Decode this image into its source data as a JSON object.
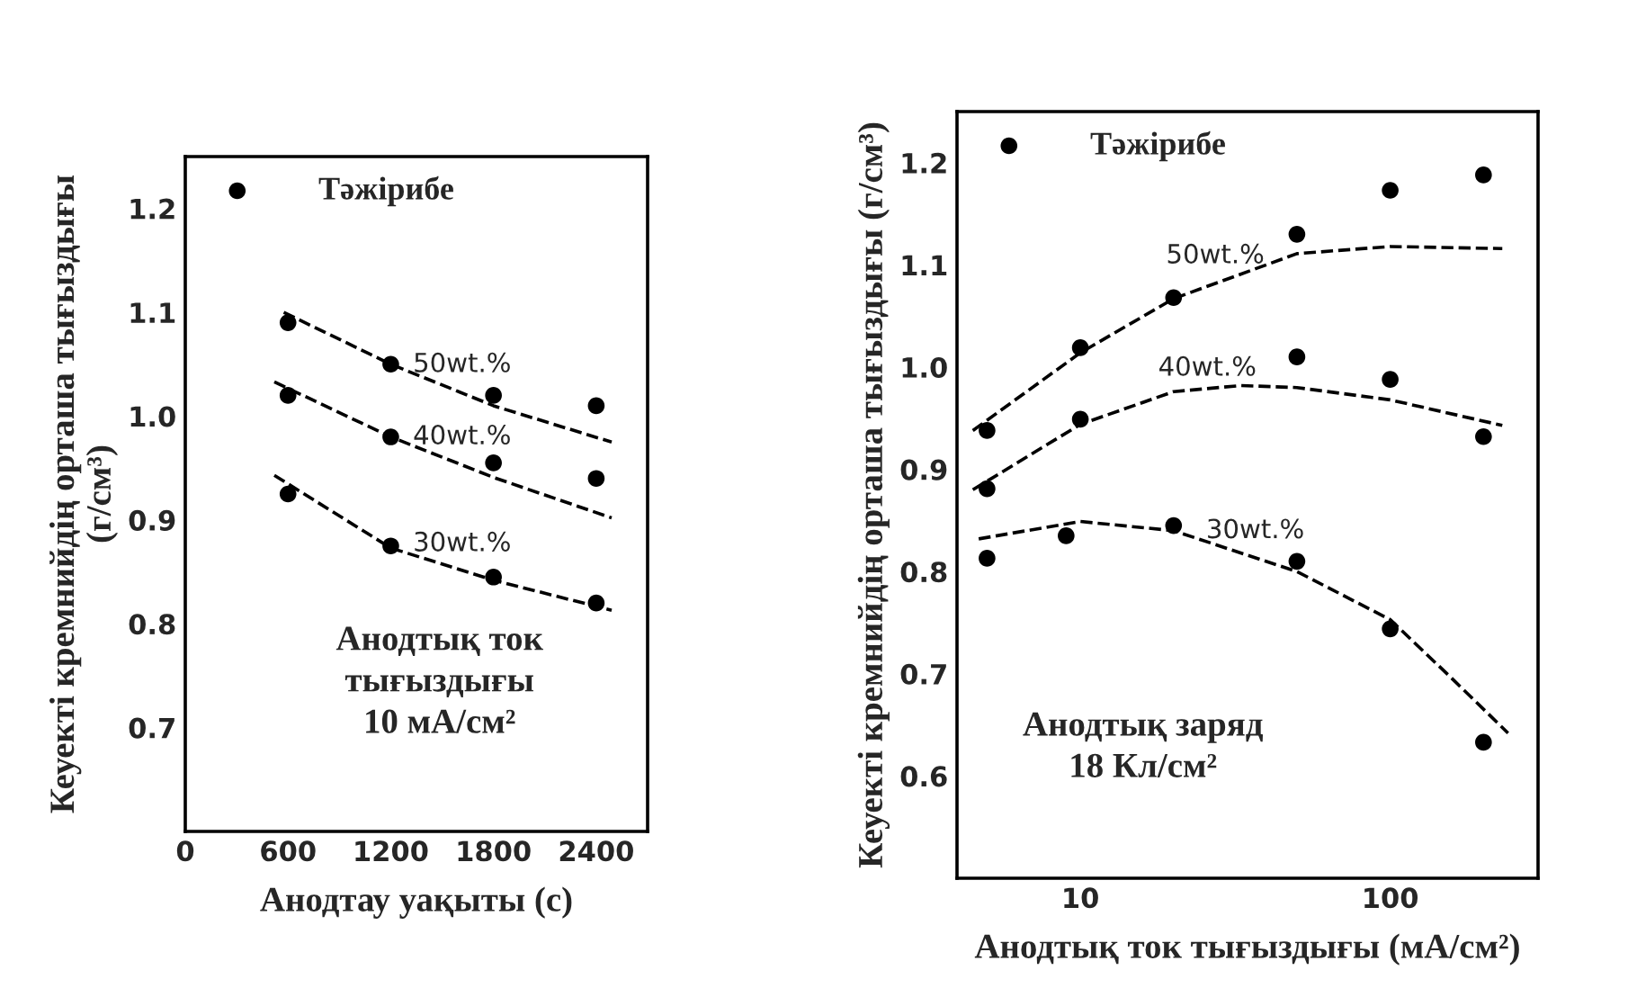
{
  "chart_data": [
    {
      "type": "scatter",
      "xlabel": "Анодтау уақыты (с)",
      "ylabel": "Кеуекті кремнийдің орташа тығыздығы\n(г/см³)",
      "xlim": [
        0,
        2700
      ],
      "ylim": [
        0.6,
        1.25
      ],
      "xticks": [
        0,
        600,
        1200,
        1800,
        2400
      ],
      "yticks": [
        0.7,
        0.8,
        0.9,
        {
          "value": 1.0,
          "label": "1.0"
        },
        1.1,
        1.2
      ],
      "grid": false,
      "legend": "top left",
      "series": [
        {
          "name": "Тәжірибе",
          "marker": "circle",
          "color": "#000000",
          "x": [
            600,
            1200,
            1800,
            2400,
            600,
            1200,
            1800,
            2400,
            600,
            1200,
            1800,
            2400
          ],
          "values": [
            1.09,
            1.05,
            1.02,
            1.01,
            1.02,
            0.98,
            0.955,
            0.94,
            0.925,
            0.875,
            0.845,
            0.82
          ]
        },
        {
          "name": "50wt.%",
          "type": "line",
          "marker": "none",
          "line_style": "dashed",
          "color": "#000000",
          "x": [
            575,
            1200,
            1800,
            2490
          ],
          "values": [
            1.1,
            1.05,
            1.01,
            0.975
          ]
        },
        {
          "name": "40wt.%",
          "type": "line",
          "marker": "none",
          "line_style": "dashed",
          "color": "#000000",
          "x": [
            520,
            1200,
            1800,
            2490
          ],
          "values": [
            1.033,
            0.98,
            0.941,
            0.902
          ]
        },
        {
          "name": "30wt.%",
          "type": "line",
          "marker": "none",
          "line_style": "dashed",
          "color": "#000000",
          "x": [
            520,
            1200,
            1800,
            2490
          ],
          "values": [
            0.943,
            0.873,
            0.842,
            0.813
          ]
        }
      ],
      "annotations": [
        "Анодтық ток\nтығыздығы\n10 мА/см²"
      ]
    },
    {
      "type": "scatter",
      "xlabel": "Анодтық ток тығыздығы (мА/см²)",
      "ylabel": "Кеуекті кремнийдің орташа тығыздығы (г/см³)",
      "log": "x",
      "xlim": [
        4,
        300
      ],
      "ylim": [
        0.5,
        1.25
      ],
      "xticks": [
        10,
        100
      ],
      "yticks": [
        0.6,
        0.7,
        0.8,
        0.9,
        {
          "value": 1.0,
          "label": "1.0"
        },
        1.1,
        1.2
      ],
      "grid": false,
      "legend": "top left",
      "series": [
        {
          "name": "Тәжірибе",
          "marker": "circle",
          "color": "#000000",
          "x": [
            5,
            10,
            20,
            50,
            100,
            200,
            5,
            10,
            50,
            100,
            200,
            5,
            9,
            20,
            50,
            100,
            200
          ],
          "values": [
            0.938,
            1.019,
            1.068,
            1.13,
            1.173,
            1.188,
            0.881,
            0.949,
            1.01,
            0.988,
            0.932,
            0.813,
            0.835,
            0.845,
            0.81,
            0.744,
            0.633
          ]
        },
        {
          "name": "50wt.%",
          "type": "line",
          "marker": "none",
          "line_style": "dashed",
          "color": "#000000",
          "x": [
            4.5,
            10,
            20,
            50,
            100,
            230
          ],
          "values": [
            0.938,
            1.014,
            1.067,
            1.111,
            1.118,
            1.116
          ]
        },
        {
          "name": "40wt.%",
          "type": "line",
          "marker": "none",
          "line_style": "dashed",
          "color": "#000000",
          "x": [
            4.5,
            10,
            20,
            33,
            50,
            100,
            230
          ],
          "values": [
            0.88,
            0.944,
            0.976,
            0.982,
            0.98,
            0.968,
            0.943
          ]
        },
        {
          "name": "30wt.%",
          "type": "line",
          "marker": "none",
          "line_style": "dashed",
          "color": "#000000",
          "x": [
            4.7,
            10,
            20,
            50,
            100,
            160,
            240
          ],
          "values": [
            0.832,
            0.849,
            0.84,
            0.8,
            0.753,
            0.694,
            0.642
          ]
        }
      ],
      "annotations": [
        "Анодтық заряд\n18 Кл/см²"
      ]
    }
  ]
}
